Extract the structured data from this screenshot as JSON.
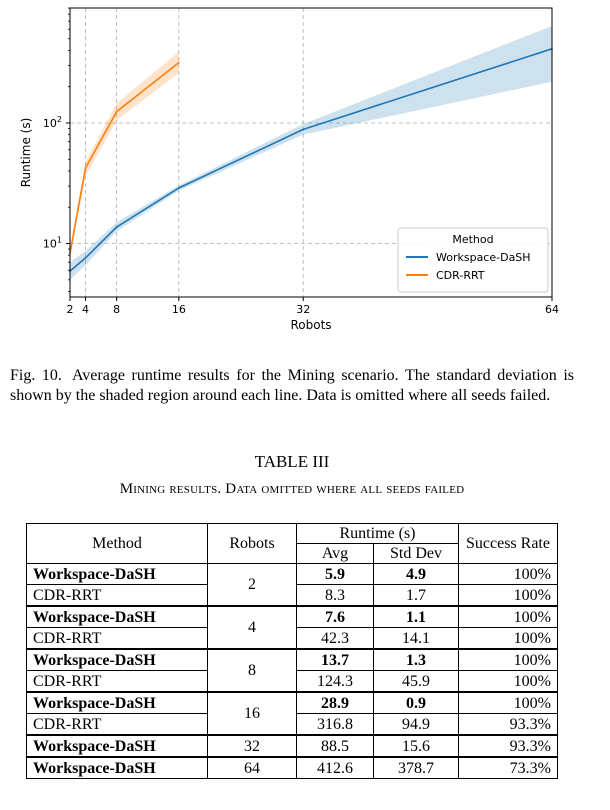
{
  "chart_data": {
    "type": "line",
    "xlabel": "Robots",
    "ylabel": "Runtime (s)",
    "xscale": "linear",
    "yscale": "log",
    "xticks": [
      2,
      4,
      8,
      16,
      32,
      64
    ],
    "yticks": [
      {
        "value": 10,
        "base": "10",
        "exp": "1"
      },
      {
        "value": 100,
        "base": "10",
        "exp": "2"
      }
    ],
    "xlim": [
      2,
      64
    ],
    "ylim": [
      3.6,
      900
    ],
    "grid": true,
    "legend": {
      "title": "Method",
      "placement": "lower-right"
    },
    "series": [
      {
        "name": "Workspace-DaSH",
        "color": "#1f77b4",
        "x": [
          2,
          4,
          8,
          16,
          32,
          64
        ],
        "y": [
          5.9,
          7.6,
          13.7,
          28.9,
          88.5,
          412.6
        ],
        "lower": [
          5.0,
          6.6,
          12.6,
          27.5,
          80.0,
          220.0
        ],
        "upper": [
          7.0,
          8.7,
          15.0,
          30.4,
          98.0,
          640.0
        ]
      },
      {
        "name": "CDR-RRT",
        "color": "#ff7f0e",
        "x": [
          2,
          4,
          8,
          16
        ],
        "y": [
          8.3,
          42.3,
          124.3,
          316.8
        ],
        "lower": [
          7.6,
          36.0,
          105.0,
          260.0
        ],
        "upper": [
          9.1,
          48.0,
          145.0,
          390.0
        ]
      }
    ]
  },
  "caption": {
    "label": "Fig. 10.",
    "text": "Average runtime results for the Mining scenario. The standard deviation is shown by the shaded region around each line. Data is omitted where all seeds failed."
  },
  "table": {
    "title": "TABLE III",
    "subtitle": "Mining results. Data omitted where all seeds failed",
    "headers": {
      "method": "Method",
      "robots": "Robots",
      "runtime": "Runtime (s)",
      "avg": "Avg",
      "std": "Std Dev",
      "success": "Success Rate"
    },
    "groups": [
      {
        "robots": "2",
        "rows": [
          {
            "method": "Workspace-DaSH",
            "avg": "5.9",
            "std": "4.9",
            "success": "100%",
            "bold_method": true,
            "bold_avg": true,
            "bold_std": true
          },
          {
            "method": "CDR-RRT",
            "avg": "8.3",
            "std": "1.7",
            "success": "100%",
            "bold_method": false,
            "bold_avg": false,
            "bold_std": false
          }
        ]
      },
      {
        "robots": "4",
        "rows": [
          {
            "method": "Workspace-DaSH",
            "avg": "7.6",
            "std": "1.1",
            "success": "100%",
            "bold_method": true,
            "bold_avg": true,
            "bold_std": true
          },
          {
            "method": "CDR-RRT",
            "avg": "42.3",
            "std": "14.1",
            "success": "100%",
            "bold_method": false,
            "bold_avg": false,
            "bold_std": false
          }
        ]
      },
      {
        "robots": "8",
        "rows": [
          {
            "method": "Workspace-DaSH",
            "avg": "13.7",
            "std": "1.3",
            "success": "100%",
            "bold_method": true,
            "bold_avg": true,
            "bold_std": true
          },
          {
            "method": "CDR-RRT",
            "avg": "124.3",
            "std": "45.9",
            "success": "100%",
            "bold_method": false,
            "bold_avg": false,
            "bold_std": false
          }
        ]
      },
      {
        "robots": "16",
        "rows": [
          {
            "method": "Workspace-DaSH",
            "avg": "28.9",
            "std": "0.9",
            "success": "100%",
            "bold_method": true,
            "bold_avg": true,
            "bold_std": true
          },
          {
            "method": "CDR-RRT",
            "avg": "316.8",
            "std": "94.9",
            "success": "93.3%",
            "bold_method": false,
            "bold_avg": false,
            "bold_std": false
          }
        ]
      },
      {
        "robots": "32",
        "rows": [
          {
            "method": "Workspace-DaSH",
            "avg": "88.5",
            "std": "15.6",
            "success": "93.3%",
            "bold_method": true,
            "bold_avg": false,
            "bold_std": false
          }
        ]
      },
      {
        "robots": "64",
        "rows": [
          {
            "method": "Workspace-DaSH",
            "avg": "412.6",
            "std": "378.7",
            "success": "73.3%",
            "bold_method": true,
            "bold_avg": false,
            "bold_std": false
          }
        ]
      }
    ]
  }
}
